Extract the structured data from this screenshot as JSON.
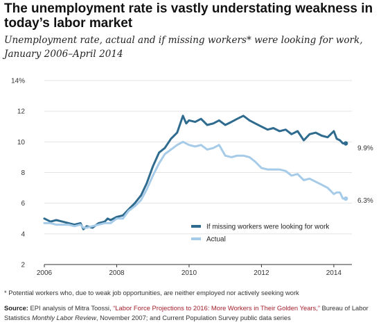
{
  "title": "The unemployment rate is vastly understating weakness in today’s labor market",
  "subtitle": "Unemployment rate, actual and if missing workers* were looking for work, January 2006–April 2014",
  "footnote": "* Potential workers who, due to weak job opportunities, are neither employed nor actively seeking work",
  "source": {
    "label": "Source:",
    "part1": " EPI analysis of Mitra Toossi, ",
    "link": "“Labor Force Projections to 2016: More Workers in Their Golden Years,”",
    "part2": " Bureau of Labor Statistics ",
    "journal": "Monthly Labor Review",
    "part3": ", November 2007; and Current Population Survey public data series"
  },
  "colors": {
    "missing": "#2e6b8f",
    "actual": "#a6cbe8",
    "grid": "#e3e3e3",
    "axis": "#333333"
  },
  "chart_data": {
    "type": "line",
    "xlim": [
      2006,
      2014.5
    ],
    "ylim": [
      2,
      14
    ],
    "x_ticks": [
      "2006",
      "2008",
      "2010",
      "2012",
      "2014"
    ],
    "y_ticks": [
      "2",
      "4",
      "6",
      "8",
      "10",
      "12",
      "14%"
    ],
    "grid": "horizontal",
    "legend_position": "bottom-right",
    "series": [
      {
        "name": "If missing workers were looking for work",
        "end_label": "9.9%",
        "points": [
          [
            2006.0,
            5.0
          ],
          [
            2006.17,
            4.8
          ],
          [
            2006.33,
            4.9
          ],
          [
            2006.5,
            4.8
          ],
          [
            2006.67,
            4.7
          ],
          [
            2006.83,
            4.6
          ],
          [
            2007.0,
            4.7
          ],
          [
            2007.08,
            4.3
          ],
          [
            2007.17,
            4.5
          ],
          [
            2007.33,
            4.4
          ],
          [
            2007.5,
            4.7
          ],
          [
            2007.67,
            4.8
          ],
          [
            2007.75,
            5.0
          ],
          [
            2007.83,
            4.9
          ],
          [
            2008.0,
            5.1
          ],
          [
            2008.17,
            5.2
          ],
          [
            2008.33,
            5.6
          ],
          [
            2008.5,
            6.0
          ],
          [
            2008.67,
            6.5
          ],
          [
            2008.83,
            7.3
          ],
          [
            2009.0,
            8.4
          ],
          [
            2009.17,
            9.3
          ],
          [
            2009.33,
            9.6
          ],
          [
            2009.5,
            10.2
          ],
          [
            2009.67,
            10.6
          ],
          [
            2009.83,
            11.7
          ],
          [
            2009.92,
            11.2
          ],
          [
            2010.0,
            11.4
          ],
          [
            2010.17,
            11.3
          ],
          [
            2010.33,
            11.5
          ],
          [
            2010.5,
            11.1
          ],
          [
            2010.67,
            11.2
          ],
          [
            2010.83,
            11.4
          ],
          [
            2011.0,
            11.1
          ],
          [
            2011.17,
            11.3
          ],
          [
            2011.33,
            11.5
          ],
          [
            2011.5,
            11.7
          ],
          [
            2011.67,
            11.4
          ],
          [
            2011.83,
            11.2
          ],
          [
            2012.0,
            11.0
          ],
          [
            2012.17,
            10.8
          ],
          [
            2012.33,
            10.9
          ],
          [
            2012.5,
            10.7
          ],
          [
            2012.67,
            10.8
          ],
          [
            2012.83,
            10.5
          ],
          [
            2013.0,
            10.7
          ],
          [
            2013.17,
            10.1
          ],
          [
            2013.33,
            10.5
          ],
          [
            2013.5,
            10.6
          ],
          [
            2013.67,
            10.4
          ],
          [
            2013.83,
            10.3
          ],
          [
            2014.0,
            10.7
          ],
          [
            2014.08,
            10.2
          ],
          [
            2014.17,
            10.1
          ],
          [
            2014.25,
            9.9
          ],
          [
            2014.33,
            9.9
          ]
        ]
      },
      {
        "name": "Actual",
        "end_label": "6.3%",
        "points": [
          [
            2006.0,
            4.7
          ],
          [
            2006.17,
            4.7
          ],
          [
            2006.33,
            4.6
          ],
          [
            2006.5,
            4.6
          ],
          [
            2006.67,
            4.6
          ],
          [
            2006.83,
            4.5
          ],
          [
            2007.0,
            4.6
          ],
          [
            2007.08,
            4.4
          ],
          [
            2007.17,
            4.4
          ],
          [
            2007.33,
            4.5
          ],
          [
            2007.5,
            4.6
          ],
          [
            2007.67,
            4.7
          ],
          [
            2007.83,
            4.7
          ],
          [
            2008.0,
            5.0
          ],
          [
            2008.17,
            5.0
          ],
          [
            2008.33,
            5.5
          ],
          [
            2008.5,
            5.8
          ],
          [
            2008.67,
            6.2
          ],
          [
            2008.83,
            6.9
          ],
          [
            2009.0,
            7.8
          ],
          [
            2009.17,
            8.6
          ],
          [
            2009.33,
            9.2
          ],
          [
            2009.5,
            9.5
          ],
          [
            2009.67,
            9.8
          ],
          [
            2009.83,
            10.0
          ],
          [
            2010.0,
            9.8
          ],
          [
            2010.17,
            9.7
          ],
          [
            2010.33,
            9.8
          ],
          [
            2010.5,
            9.5
          ],
          [
            2010.67,
            9.6
          ],
          [
            2010.83,
            9.8
          ],
          [
            2011.0,
            9.1
          ],
          [
            2011.17,
            9.0
          ],
          [
            2011.33,
            9.1
          ],
          [
            2011.5,
            9.1
          ],
          [
            2011.67,
            9.0
          ],
          [
            2011.83,
            8.7
          ],
          [
            2012.0,
            8.3
          ],
          [
            2012.17,
            8.2
          ],
          [
            2012.33,
            8.2
          ],
          [
            2012.5,
            8.2
          ],
          [
            2012.67,
            8.1
          ],
          [
            2012.83,
            7.8
          ],
          [
            2013.0,
            7.9
          ],
          [
            2013.17,
            7.5
          ],
          [
            2013.33,
            7.6
          ],
          [
            2013.5,
            7.4
          ],
          [
            2013.67,
            7.2
          ],
          [
            2013.83,
            7.0
          ],
          [
            2014.0,
            6.6
          ],
          [
            2014.08,
            6.7
          ],
          [
            2014.17,
            6.7
          ],
          [
            2014.25,
            6.3
          ],
          [
            2014.33,
            6.3
          ]
        ]
      }
    ]
  }
}
